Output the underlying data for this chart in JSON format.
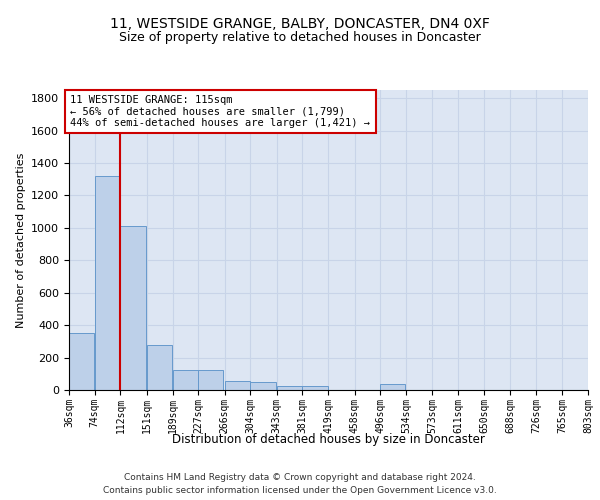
{
  "title": "11, WESTSIDE GRANGE, BALBY, DONCASTER, DN4 0XF",
  "subtitle": "Size of property relative to detached houses in Doncaster",
  "xlabel": "Distribution of detached houses by size in Doncaster",
  "ylabel": "Number of detached properties",
  "footer_line1": "Contains HM Land Registry data © Crown copyright and database right 2024.",
  "footer_line2": "Contains public sector information licensed under the Open Government Licence v3.0.",
  "annotation_title": "11 WESTSIDE GRANGE: 115sqm",
  "annotation_line1": "← 56% of detached houses are smaller (1,799)",
  "annotation_line2": "44% of semi-detached houses are larger (1,421) →",
  "bin_edges": [
    36,
    74,
    112,
    151,
    189,
    227,
    266,
    304,
    343,
    381,
    419,
    458,
    496,
    534,
    573,
    611,
    650,
    688,
    726,
    765,
    803
  ],
  "bin_labels": [
    "36sqm",
    "74sqm",
    "112sqm",
    "151sqm",
    "189sqm",
    "227sqm",
    "266sqm",
    "304sqm",
    "343sqm",
    "381sqm",
    "419sqm",
    "458sqm",
    "496sqm",
    "534sqm",
    "573sqm",
    "611sqm",
    "650sqm",
    "688sqm",
    "726sqm",
    "765sqm",
    "803sqm"
  ],
  "bar_heights": [
    350,
    1320,
    1010,
    280,
    125,
    125,
    55,
    50,
    25,
    25,
    0,
    0,
    35,
    0,
    0,
    0,
    0,
    0,
    0,
    0
  ],
  "bar_color": "#bdd0e9",
  "bar_edge_color": "#6699cc",
  "grid_color": "#c8d4e8",
  "background_color": "#dde6f3",
  "red_line_color": "#cc0000",
  "annotation_box_color": "#cc0000",
  "ylim": [
    0,
    1850
  ],
  "yticks": [
    0,
    200,
    400,
    600,
    800,
    1000,
    1200,
    1400,
    1600,
    1800
  ],
  "property_bin_index": 2
}
